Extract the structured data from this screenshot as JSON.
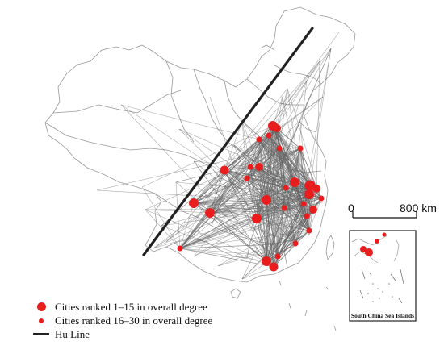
{
  "map": {
    "line_color": "#666666",
    "outline_color": "#999999",
    "city_color": "#e81e1e",
    "hu_line_color": "#222222"
  },
  "legend": {
    "top_cities": "Cities ranked 1–15 in overall degree",
    "mid_cities": "Cities ranked 16–30 in overall degree",
    "hu_line": "Hu Line"
  },
  "scale_bar": {
    "zero_label": "0",
    "distance_label": "800 km"
  },
  "inset": {
    "caption": "South China Sea Islands"
  }
}
